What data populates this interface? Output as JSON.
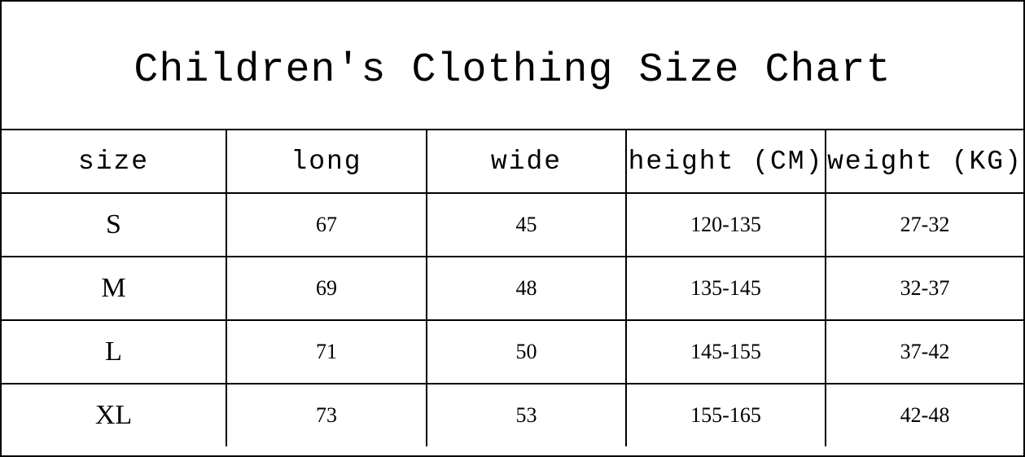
{
  "title": "Children's Clothing Size Chart",
  "columns": [
    "size",
    "long",
    "wide",
    "height (CM)",
    "weight (KG)"
  ],
  "rows": [
    [
      "S",
      "67",
      "45",
      "120-135",
      "27-32"
    ],
    [
      "M",
      "69",
      "48",
      "135-145",
      "32-37"
    ],
    [
      "L",
      "71",
      "50",
      "145-155",
      "37-42"
    ],
    [
      "XL",
      "73",
      "53",
      "155-165",
      "42-48"
    ]
  ]
}
